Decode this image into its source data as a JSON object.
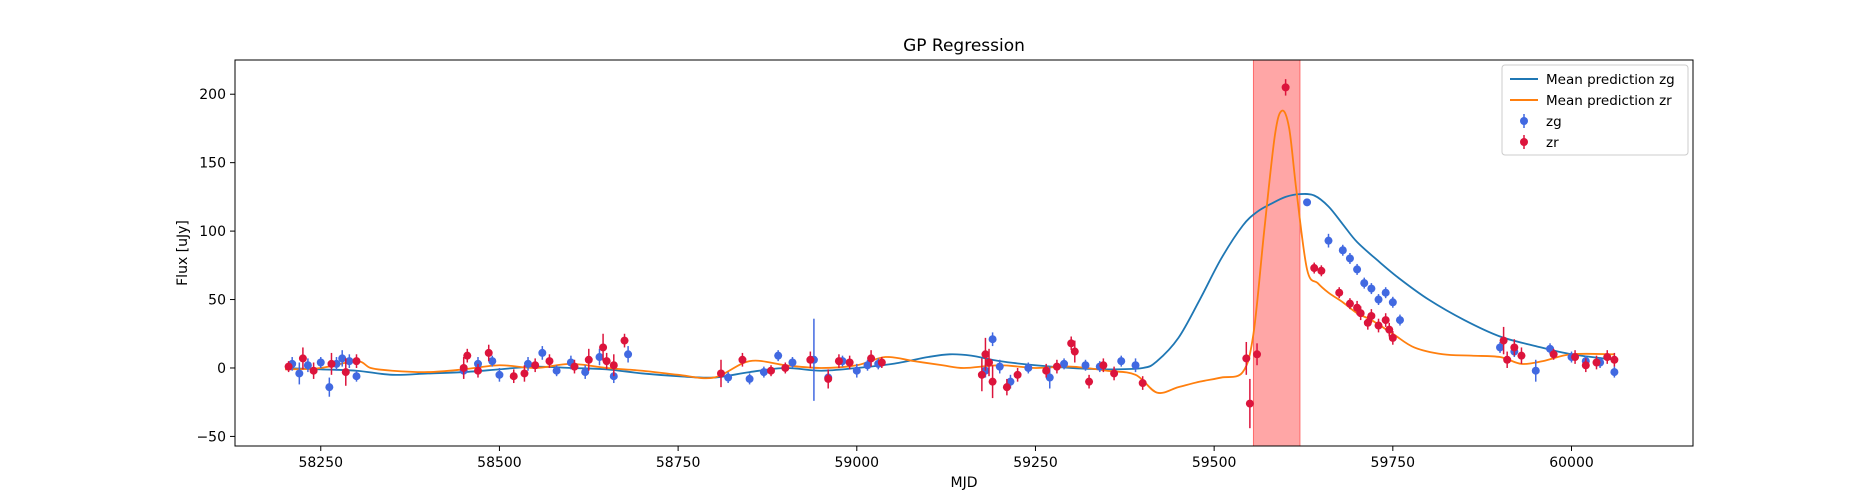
{
  "chart_data": {
    "type": "line",
    "title": "GP Regression",
    "xlabel": "MJD",
    "ylabel": "Flux [uJy]",
    "xlim": [
      58130,
      60170
    ],
    "ylim": [
      -57,
      225
    ],
    "xticks": [
      58250,
      58500,
      58750,
      59000,
      59250,
      59500,
      59750,
      60000
    ],
    "yticks": [
      -50,
      0,
      50,
      100,
      150,
      200
    ],
    "grid": false,
    "legend_position": "top-right",
    "shaded_region": {
      "x": [
        59555,
        59620
      ],
      "color": "#ff6b6b"
    },
    "colors": {
      "zg_line": "#1f77b4",
      "zr_line": "#ff7f0e",
      "zg_points": "#4169e1",
      "zr_points": "#dc143c"
    },
    "legend": [
      {
        "label": "Mean prediction zg",
        "kind": "line",
        "color": "#1f77b4"
      },
      {
        "label": "Mean prediction zr",
        "kind": "line",
        "color": "#ff7f0e"
      },
      {
        "label": "zg",
        "kind": "errorbar",
        "color": "#4169e1"
      },
      {
        "label": "zr",
        "kind": "errorbar",
        "color": "#dc143c"
      }
    ],
    "series": [
      {
        "name": "Mean prediction zg",
        "kind": "line",
        "color": "#1f77b4",
        "x": [
          58200,
          58250,
          58300,
          58350,
          58400,
          58450,
          58500,
          58550,
          58600,
          58650,
          58700,
          58750,
          58800,
          58850,
          58900,
          58950,
          59000,
          59050,
          59100,
          59130,
          59160,
          59200,
          59250,
          59300,
          59350,
          59400,
          59420,
          59450,
          59480,
          59510,
          59540,
          59560,
          59580,
          59600,
          59620,
          59640,
          59660,
          59680,
          59700,
          59730,
          59760,
          59800,
          59850,
          59900,
          59950,
          60000,
          60060
        ],
        "y": [
          0,
          -1,
          -2,
          -5,
          -4,
          -3,
          -1,
          1,
          0,
          -1,
          -4,
          -6,
          -7,
          -3,
          0,
          -2,
          0,
          3,
          8,
          10,
          9,
          5,
          2,
          0,
          -1,
          0,
          5,
          22,
          50,
          80,
          104,
          114,
          120,
          125,
          127,
          126,
          118,
          105,
          92,
          78,
          65,
          50,
          35,
          23,
          16,
          10,
          6
        ]
      },
      {
        "name": "Mean prediction zr",
        "kind": "line",
        "color": "#ff7f0e",
        "x": [
          58200,
          58250,
          58300,
          58320,
          58350,
          58400,
          58450,
          58500,
          58550,
          58600,
          58650,
          58700,
          58750,
          58800,
          58850,
          58900,
          58950,
          59000,
          59040,
          59080,
          59120,
          59150,
          59200,
          59250,
          59300,
          59350,
          59390,
          59420,
          59450,
          59480,
          59510,
          59540,
          59555,
          59570,
          59585,
          59595,
          59605,
          59615,
          59630,
          59645,
          59660,
          59680,
          59700,
          59720,
          59750,
          59780,
          59820,
          59860,
          59900,
          59930,
          59960,
          60000,
          60060
        ],
        "y": [
          -1,
          0,
          5,
          0,
          -2,
          -3,
          -1,
          2,
          0,
          3,
          0,
          -2,
          -5,
          -7,
          5,
          2,
          0,
          2,
          8,
          5,
          2,
          0,
          2,
          0,
          1,
          -2,
          -5,
          -18,
          -14,
          -10,
          -7,
          -3,
          25,
          100,
          170,
          188,
          175,
          130,
          72,
          62,
          55,
          48,
          40,
          35,
          25,
          15,
          10,
          9,
          8,
          3,
          5,
          10,
          10
        ]
      },
      {
        "name": "zg",
        "kind": "errorbar",
        "color": "#4169e1",
        "x": [
          58210,
          58220,
          58232,
          58250,
          58262,
          58272,
          58280,
          58290,
          58300,
          58450,
          58470,
          58490,
          58500,
          58540,
          58560,
          58580,
          58600,
          58620,
          58640,
          58660,
          58680,
          58820,
          58850,
          58870,
          58890,
          58910,
          58940,
          58960,
          58980,
          59000,
          59015,
          59030,
          59180,
          59190,
          59200,
          59215,
          59240,
          59270,
          59290,
          59320,
          59340,
          59370,
          59390,
          59630,
          59660,
          59680,
          59690,
          59700,
          59710,
          59720,
          59730,
          59740,
          59750,
          59760,
          59900,
          59920,
          59950,
          59970,
          60000,
          60020,
          60040,
          60060
        ],
        "y": [
          3,
          -4,
          2,
          4,
          -14,
          3,
          7,
          5,
          -6,
          -2,
          3,
          5,
          -5,
          3,
          11,
          -2,
          4,
          -3,
          8,
          -6,
          10,
          -7,
          -8,
          -3,
          9,
          4,
          6,
          -7,
          5,
          -2,
          2,
          3,
          -2,
          21,
          1,
          -10,
          0,
          -7,
          3,
          2,
          1,
          5,
          2,
          121,
          93,
          86,
          80,
          72,
          62,
          58,
          50,
          55,
          48,
          35,
          15,
          12,
          -2,
          14,
          8,
          5,
          4,
          -3
        ],
        "err": [
          5,
          8,
          5,
          4,
          7,
          5,
          6,
          5,
          4,
          5,
          5,
          4,
          5,
          5,
          5,
          4,
          5,
          5,
          6,
          5,
          6,
          4,
          4,
          4,
          4,
          4,
          30,
          4,
          4,
          5,
          4,
          4,
          5,
          5,
          5,
          5,
          4,
          8,
          4,
          4,
          4,
          4,
          5,
          2,
          5,
          4,
          4,
          4,
          4,
          4,
          4,
          4,
          4,
          4,
          4,
          4,
          8,
          4,
          4,
          4,
          4,
          4
        ]
      },
      {
        "name": "zr",
        "kind": "errorbar",
        "color": "#dc143c",
        "x": [
          58205,
          58225,
          58240,
          58265,
          58285,
          58300,
          58450,
          58455,
          58470,
          58485,
          58520,
          58535,
          58550,
          58570,
          58605,
          58625,
          58645,
          58650,
          58660,
          58675,
          58810,
          58840,
          58880,
          58900,
          58935,
          58960,
          58975,
          58990,
          59020,
          59035,
          59175,
          59180,
          59185,
          59190,
          59210,
          59225,
          59265,
          59280,
          59300,
          59305,
          59325,
          59345,
          59360,
          59400,
          59545,
          59550,
          59560,
          59600,
          59640,
          59650,
          59675,
          59690,
          59700,
          59705,
          59715,
          59720,
          59730,
          59740,
          59745,
          59750,
          59905,
          59910,
          59920,
          59930,
          59975,
          60005,
          60020,
          60035,
          60050,
          60060
        ],
        "y": [
          1,
          7,
          -2,
          3,
          -3,
          5,
          0,
          9,
          -2,
          11,
          -6,
          -4,
          2,
          5,
          1,
          6,
          15,
          5,
          2,
          20,
          -4,
          6,
          -2,
          0,
          6,
          -8,
          5,
          4,
          7,
          4,
          -5,
          10,
          4,
          -10,
          -14,
          -5,
          -2,
          1,
          18,
          12,
          -10,
          2,
          -4,
          -11,
          7,
          -26,
          10,
          205,
          73,
          71,
          55,
          47,
          44,
          40,
          33,
          38,
          31,
          35,
          28,
          22,
          20,
          6,
          15,
          9,
          10,
          8,
          2,
          4,
          8,
          6
        ],
        "err": [
          4,
          8,
          6,
          8,
          10,
          5,
          8,
          5,
          5,
          6,
          5,
          6,
          5,
          5,
          5,
          8,
          10,
          6,
          8,
          5,
          10,
          5,
          4,
          4,
          6,
          7,
          5,
          5,
          6,
          4,
          12,
          12,
          10,
          12,
          6,
          5,
          5,
          5,
          5,
          8,
          5,
          5,
          5,
          5,
          12,
          18,
          8,
          6,
          4,
          4,
          4,
          4,
          5,
          5,
          5,
          5,
          5,
          5,
          5,
          5,
          10,
          6,
          6,
          6,
          4,
          5,
          5,
          5,
          5,
          5
        ]
      }
    ]
  }
}
